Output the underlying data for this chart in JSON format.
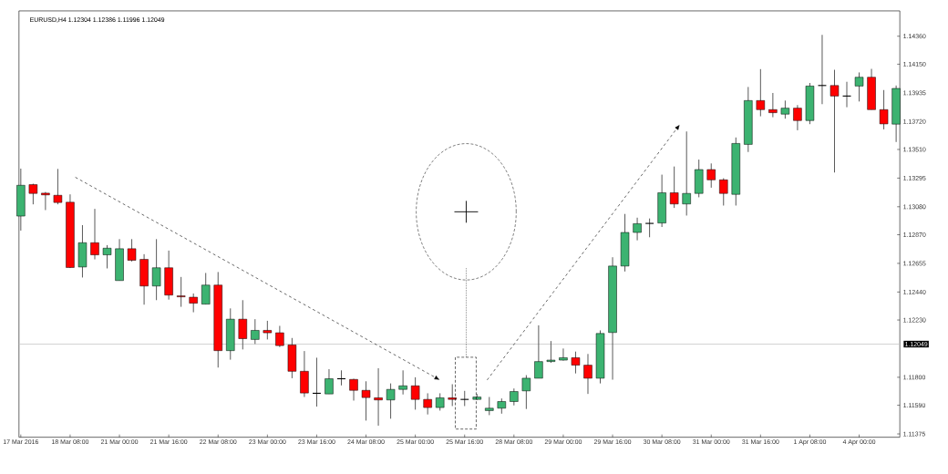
{
  "chart_data": {
    "type": "candlestick",
    "title": "EURUSD,H4 1.12304 1.12386 1.11996 1.12049",
    "categories": [
      "17 Mar 2016",
      null,
      null,
      null,
      "18 Mar 08:00",
      null,
      null,
      null,
      "21 Mar 00:00",
      null,
      null,
      null,
      "21 Mar 16:00",
      null,
      null,
      null,
      "22 Mar 08:00",
      null,
      null,
      null,
      "23 Mar 00:00",
      null,
      null,
      null,
      "23 Mar 16:00",
      null,
      null,
      null,
      "24 Mar 08:00",
      null,
      null,
      null,
      "25 Mar 00:00",
      null,
      null,
      null,
      "25 Mar 16:00",
      null,
      null,
      null,
      "28 Mar 08:00",
      null,
      null,
      null,
      "29 Mar 00:00",
      null,
      null,
      null,
      "29 Mar 16:00",
      null,
      null,
      null,
      "30 Mar 08:00",
      null,
      null,
      null,
      "31 Mar 00:00",
      null,
      null,
      null,
      "31 Mar 16:00",
      null,
      null,
      null,
      "1 Apr 08:00",
      null,
      null,
      null,
      "4 Apr 00:00",
      null,
      null,
      null
    ],
    "ohlc": [
      [
        1.1301,
        1.13366,
        1.12901,
        1.13241
      ],
      [
        1.13246,
        1.13253,
        1.13098,
        1.1318
      ],
      [
        1.13182,
        1.13191,
        1.13055,
        1.13169
      ],
      [
        1.13166,
        1.13364,
        1.13098,
        1.13112
      ],
      [
        1.13114,
        1.13173,
        1.1262,
        1.12624
      ],
      [
        1.12628,
        1.12942,
        1.12549,
        1.1281
      ],
      [
        1.1281,
        1.13064,
        1.12685,
        1.12719
      ],
      [
        1.12719,
        1.12792,
        1.12617,
        1.12769
      ],
      [
        1.12526,
        1.12837,
        1.12526,
        1.12765
      ],
      [
        1.12765,
        1.12837,
        1.12669,
        1.12678
      ],
      [
        1.12685,
        1.12724,
        1.12345,
        1.12485
      ],
      [
        1.12485,
        1.12837,
        1.12379,
        1.12622
      ],
      [
        1.12622,
        1.12751,
        1.12383,
        1.12417
      ],
      [
        1.12411,
        1.12553,
        1.12329,
        1.12404
      ],
      [
        1.12401,
        1.12429,
        1.12288,
        1.12356
      ],
      [
        1.12349,
        1.12583,
        1.12349,
        1.12492
      ],
      [
        1.12492,
        1.1259,
        1.11873,
        1.12
      ],
      [
        1.12,
        1.12317,
        1.11932,
        1.12236
      ],
      [
        1.12236,
        1.12379,
        1.12009,
        1.1209
      ],
      [
        1.12084,
        1.12236,
        1.1205,
        1.12152
      ],
      [
        1.12152,
        1.12224,
        1.12084,
        1.12134
      ],
      [
        1.12134,
        1.12186,
        1.12027,
        1.12038
      ],
      [
        1.12043,
        1.12095,
        1.11793,
        1.11845
      ],
      [
        1.11845,
        1.11997,
        1.11652,
        1.11682
      ],
      [
        1.1168,
        1.11947,
        1.1158,
        1.1168
      ],
      [
        1.11675,
        1.11861,
        1.11675,
        1.11789
      ],
      [
        1.11789,
        1.11852,
        1.11739,
        1.11789
      ],
      [
        1.11784,
        1.11789,
        1.11625,
        1.11702
      ],
      [
        1.11702,
        1.1177,
        1.11475,
        1.11648
      ],
      [
        1.11646,
        1.11868,
        1.11437,
        1.1163
      ],
      [
        1.1163,
        1.11754,
        1.11489,
        1.11709
      ],
      [
        1.11709,
        1.11852,
        1.11671,
        1.11736
      ],
      [
        1.11736,
        1.118,
        1.11557,
        1.11634
      ],
      [
        1.11634,
        1.1168,
        1.11521,
        1.11573
      ],
      [
        1.11573,
        1.1168,
        1.1155,
        1.11646
      ],
      [
        1.11646,
        1.11748,
        1.11584,
        1.11634
      ],
      [
        1.11634,
        1.11698,
        1.11584,
        1.11634
      ],
      [
        1.11634,
        1.11675,
        1.1163,
        1.11652
      ],
      [
        1.1155,
        1.11652,
        1.11516,
        1.11568
      ],
      [
        1.11568,
        1.11641,
        1.11527,
        1.11618
      ],
      [
        1.11618,
        1.11716,
        1.11589,
        1.11693
      ],
      [
        1.11698,
        1.11816,
        1.11562,
        1.11793
      ],
      [
        1.11793,
        1.1219,
        1.11793,
        1.11918
      ],
      [
        1.11918,
        1.12072,
        1.11909,
        1.11929
      ],
      [
        1.11929,
        1.12016,
        1.11925,
        1.11947
      ],
      [
        1.11947,
        1.11993,
        1.11829,
        1.11891
      ],
      [
        1.11891,
        1.11975,
        1.11675,
        1.11793
      ],
      [
        1.11793,
        1.12152,
        1.11754,
        1.12129
      ],
      [
        1.12136,
        1.12701,
        1.11782,
        1.12635
      ],
      [
        1.12635,
        1.13026,
        1.12594,
        1.12887
      ],
      [
        1.12887,
        1.12998,
        1.12828,
        1.12953
      ],
      [
        1.12955,
        1.12992,
        1.12851,
        1.12955
      ],
      [
        1.12958,
        1.13321,
        1.12928,
        1.13185
      ],
      [
        1.13185,
        1.13382,
        1.13071,
        1.13101
      ],
      [
        1.13101,
        1.13645,
        1.13014,
        1.1318
      ],
      [
        1.1318,
        1.13434,
        1.13151,
        1.13359
      ],
      [
        1.13359,
        1.13405,
        1.13223,
        1.13282
      ],
      [
        1.13282,
        1.13294,
        1.13089,
        1.1318
      ],
      [
        1.13173,
        1.136,
        1.13089,
        1.13555
      ],
      [
        1.13548,
        1.13979,
        1.13491,
        1.13877
      ],
      [
        1.13877,
        1.14113,
        1.13759,
        1.13809
      ],
      [
        1.13809,
        1.13934,
        1.13752,
        1.13786
      ],
      [
        1.13775,
        1.13877,
        1.13741,
        1.1382
      ],
      [
        1.1382,
        1.13843,
        1.13654,
        1.13727
      ],
      [
        1.13727,
        1.14009,
        1.137,
        1.13986
      ],
      [
        1.1399,
        1.1437,
        1.1385,
        1.1399
      ],
      [
        1.1399,
        1.14108,
        1.13337,
        1.13911
      ],
      [
        1.13911,
        1.14018,
        1.13827,
        1.13911
      ],
      [
        1.13986,
        1.14088,
        1.1387,
        1.14052
      ],
      [
        1.14052,
        1.14115,
        1.13809,
        1.13809
      ],
      [
        1.13809,
        1.13956,
        1.13661,
        1.13702
      ],
      [
        1.137,
        1.1399,
        1.13566,
        1.13968
      ]
    ],
    "colors": [
      "#3cb371",
      "#ff0000",
      "#ff0000",
      "#ff0000",
      "#ff0000",
      "#3cb371",
      "#ff0000",
      "#3cb371",
      "#3cb371",
      "#ff0000",
      "#ff0000",
      "#3cb371",
      "#ff0000",
      "#ff0000",
      "#ff0000",
      "#3cb371",
      "#ff0000",
      "#3cb371",
      "#ff0000",
      "#3cb371",
      "#ff0000",
      "#ff0000",
      "#ff0000",
      "#ff0000",
      "#000000",
      "#3cb371",
      "#000000",
      "#ff0000",
      "#ff0000",
      "#ff0000",
      "#3cb371",
      "#3cb371",
      "#ff0000",
      "#ff0000",
      "#3cb371",
      "#ff0000",
      "#000000",
      "#3cb371",
      "#3cb371",
      "#3cb371",
      "#3cb371",
      "#3cb371",
      "#3cb371",
      "#3cb371",
      "#3cb371",
      "#ff0000",
      "#ff0000",
      "#3cb371",
      "#3cb371",
      "#3cb371",
      "#3cb371",
      "#000000",
      "#3cb371",
      "#ff0000",
      "#3cb371",
      "#3cb371",
      "#ff0000",
      "#ff0000",
      "#3cb371",
      "#3cb371",
      "#ff0000",
      "#ff0000",
      "#3cb371",
      "#ff0000",
      "#3cb371",
      "#000000",
      "#ff0000",
      "#000000",
      "#3cb371",
      "#ff0000",
      "#ff0000",
      "#3cb371"
    ],
    "ylim": [
      1.1135,
      1.1455
    ],
    "yticks": [
      {
        "value": 1.1436,
        "label": "1.14360"
      },
      {
        "value": 1.1415,
        "label": "1.14150"
      },
      1.13935,
      {
        "value": 1.1372,
        "label": "1.13720"
      },
      {
        "value": 1.1351,
        "label": "1.13510"
      },
      1.13295,
      {
        "value": 1.1308,
        "label": "1.13080"
      },
      {
        "value": 1.1287,
        "label": "1.12870"
      },
      1.12655,
      {
        "value": 1.1244,
        "label": "1.12440"
      },
      {
        "value": 1.1223,
        "label": "1.12230"
      },
      {
        "value": 1.118,
        "label": "1.11800"
      },
      {
        "value": 1.1159,
        "label": "1.11590"
      },
      1.11375
    ],
    "ref_lines": [
      {
        "axis": "y",
        "value": 1.12049,
        "label": "1.12049",
        "color": "#c8c8c8"
      }
    ]
  }
}
